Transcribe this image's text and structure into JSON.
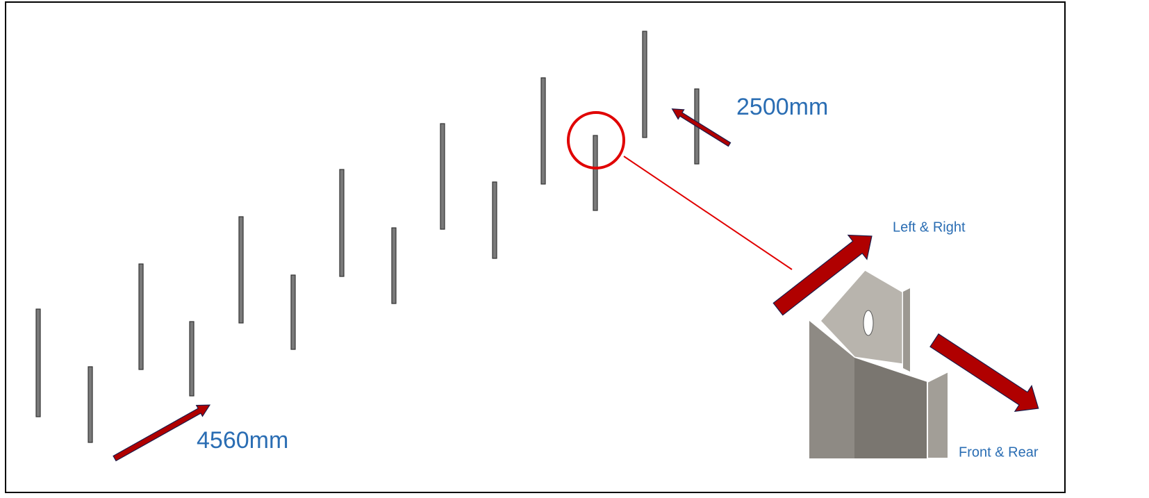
{
  "dimensions": [
    "4560mm",
    "2500mm"
  ],
  "directions": [
    "Left & Right",
    "Front & Rear"
  ]
}
